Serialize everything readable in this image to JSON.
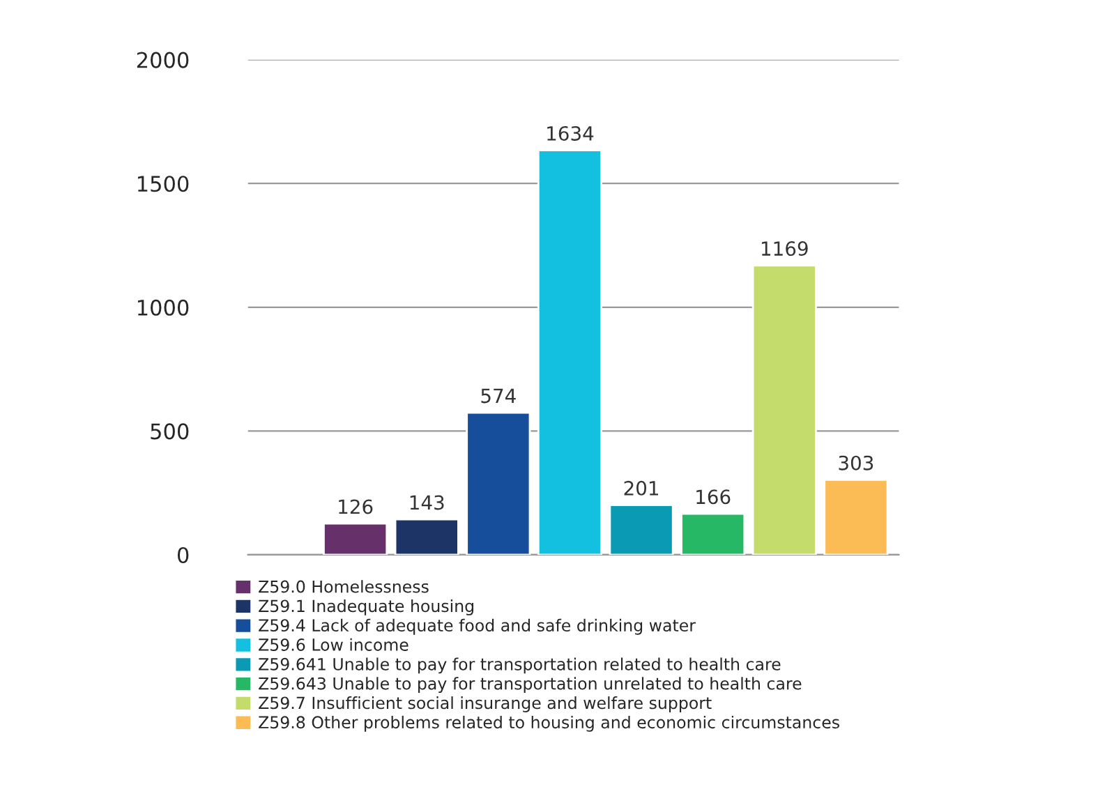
{
  "chart_data": {
    "type": "bar",
    "categories": [
      null
    ],
    "series": [
      {
        "name": "Z59.0 Homelessness",
        "color": "#66306b",
        "values": [
          126
        ]
      },
      {
        "name": "Z59.1 Inadequate housing",
        "color": "#1d3566",
        "values": [
          143
        ]
      },
      {
        "name": "Z59.4 Lack of adequate food and safe drinking water",
        "color": "#174e9c",
        "values": [
          574
        ]
      },
      {
        "name": "Z59.6 Low income",
        "color": "#14c0e0",
        "values": [
          1634
        ]
      },
      {
        "name": "Z59.641 Unable to pay for transportation related to health care",
        "color": "#0b9ab3",
        "values": [
          201
        ]
      },
      {
        "name": "Z59.643 Unable to pay for transportation unrelated to health care",
        "color": "#27b865",
        "values": [
          166
        ]
      },
      {
        "name": "Z59.7 Insufficient social insurange and welfare support",
        "color": "#c4dc6c",
        "values": [
          1169
        ]
      },
      {
        "name": "Z59.8 Other problems related to housing and economic circumstances",
        "color": "#fbbb55",
        "values": [
          303
        ]
      }
    ],
    "ylim": [
      0,
      2000
    ],
    "yticks": [
      0,
      500,
      1000,
      1500,
      2000
    ],
    "grid": "y",
    "data_labels": true,
    "legend": "bottom"
  }
}
